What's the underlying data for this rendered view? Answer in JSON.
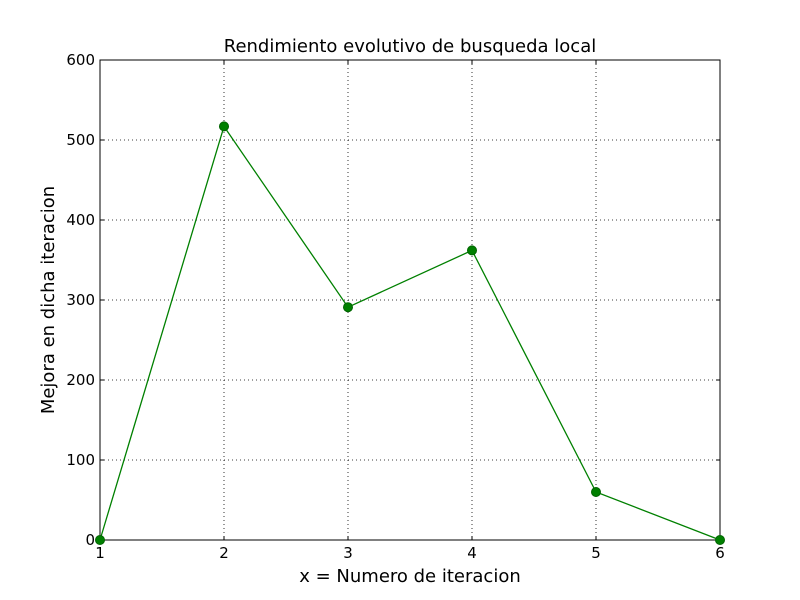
{
  "chart_data": {
    "type": "line",
    "title": "Rendimiento evolutivo de busqueda local",
    "xlabel": "x = Numero de iteracion",
    "ylabel": "Mejora en dicha iteracion",
    "x": [
      1,
      2,
      3,
      4,
      5,
      6
    ],
    "xticks": [
      "1",
      "2",
      "3",
      "4",
      "5",
      "6"
    ],
    "yticks": [
      "0",
      "100",
      "200",
      "300",
      "400",
      "500",
      "600"
    ],
    "xlim": [
      1,
      6
    ],
    "ylim": [
      0,
      600
    ],
    "grid": true,
    "series": [
      {
        "values": [
          0,
          517,
          291,
          362,
          60,
          0
        ],
        "color": "#008000",
        "marker": "circle",
        "marker_color": "#006400"
      }
    ]
  }
}
